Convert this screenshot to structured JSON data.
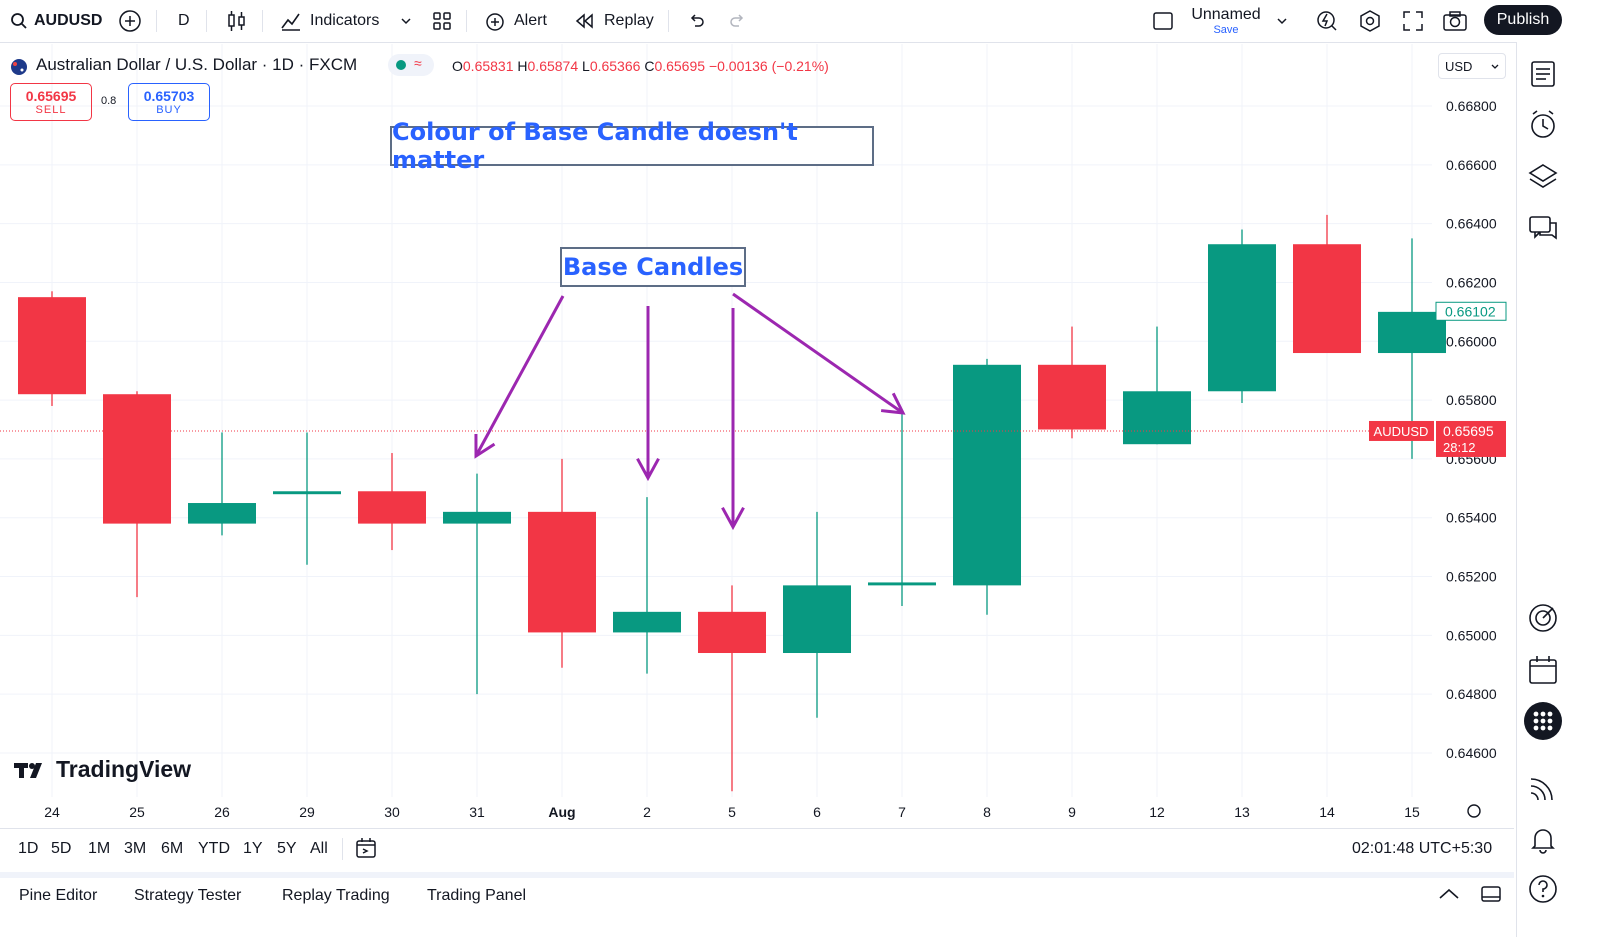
{
  "toolbar": {
    "symbol": "AUDUSD",
    "interval": "D",
    "indicators_label": "Indicators",
    "alert_label": "Alert",
    "replay_label": "Replay",
    "layout_name": "Unnamed",
    "save_label": "Save",
    "publish_label": "Publish"
  },
  "legend": {
    "title": "Australian Dollar / U.S. Dollar · 1D · FXCM",
    "open_key": "O",
    "open_val": "0.65831",
    "high_key": "H",
    "high_val": "0.65874",
    "low_key": "L",
    "low_val": "0.65366",
    "close_key": "C",
    "close_val": "0.65695",
    "change": "−0.00136 (−0.21%)"
  },
  "trade": {
    "sell_price": "0.65695",
    "sell_label": "SELL",
    "spread": "0.8",
    "buy_price": "0.65703",
    "buy_label": "BUY"
  },
  "currency": "USD",
  "annotations": {
    "headline": "Colour of Base Candle doesn't matter",
    "base_label": "Base Candles"
  },
  "price_axis": {
    "ticks": [
      "0.66800",
      "0.66600",
      "0.66400",
      "0.66200",
      "0.66000",
      "0.65800",
      "0.65600",
      "0.65400",
      "0.65200",
      "0.65000",
      "0.64800",
      "0.64600"
    ],
    "current_label": "AUDUSD",
    "current_price": "0.65695",
    "countdown": "28:12",
    "marker_price": "0.66102"
  },
  "colors": {
    "up": "#089981",
    "down": "#f23645",
    "accent": "#2962ff",
    "arrow": "#9c27b0"
  },
  "chart_data": {
    "type": "candlestick",
    "x": [
      "24",
      "25",
      "26",
      "29",
      "30",
      "31",
      "Aug",
      "2",
      "5",
      "6",
      "7",
      "8",
      "9",
      "12",
      "13",
      "14",
      "15"
    ],
    "candles": [
      {
        "o": 0.6615,
        "h": 0.6617,
        "l": 0.6578,
        "c": 0.6582
      },
      {
        "o": 0.6582,
        "h": 0.6583,
        "l": 0.6513,
        "c": 0.6538
      },
      {
        "o": 0.6538,
        "h": 0.6569,
        "l": 0.6534,
        "c": 0.6545
      },
      {
        "o": 0.6548,
        "h": 0.6569,
        "l": 0.6524,
        "c": 0.6549
      },
      {
        "o": 0.6549,
        "h": 0.6562,
        "l": 0.6529,
        "c": 0.6538
      },
      {
        "o": 0.6538,
        "h": 0.6555,
        "l": 0.648,
        "c": 0.6542
      },
      {
        "o": 0.6542,
        "h": 0.656,
        "l": 0.6489,
        "c": 0.6501
      },
      {
        "o": 0.6501,
        "h": 0.6547,
        "l": 0.6487,
        "c": 0.6508
      },
      {
        "o": 0.6508,
        "h": 0.6517,
        "l": 0.6447,
        "c": 0.6494
      },
      {
        "o": 0.6494,
        "h": 0.6542,
        "l": 0.6472,
        "c": 0.6517
      },
      {
        "o": 0.6517,
        "h": 0.6576,
        "l": 0.651,
        "c": 0.6518
      },
      {
        "o": 0.6517,
        "h": 0.6594,
        "l": 0.6507,
        "c": 0.6592
      },
      {
        "o": 0.6592,
        "h": 0.6605,
        "l": 0.6567,
        "c": 0.657
      },
      {
        "o": 0.6565,
        "h": 0.6605,
        "l": 0.6565,
        "c": 0.6583
      },
      {
        "o": 0.6583,
        "h": 0.6638,
        "l": 0.6579,
        "c": 0.6633
      },
      {
        "o": 0.6633,
        "h": 0.6643,
        "l": 0.6596,
        "c": 0.6596
      },
      {
        "o": 0.6596,
        "h": 0.6635,
        "l": 0.656,
        "c": 0.661
      }
    ],
    "ylim": [
      0.6452,
      0.6694
    ]
  },
  "ranges": [
    "1D",
    "5D",
    "1M",
    "3M",
    "6M",
    "YTD",
    "1Y",
    "5Y",
    "All"
  ],
  "clock": "02:01:48 UTC+5:30",
  "bottom_tabs": [
    "Pine Editor",
    "Strategy Tester",
    "Replay Trading",
    "Trading Panel"
  ],
  "brand": "TradingView"
}
